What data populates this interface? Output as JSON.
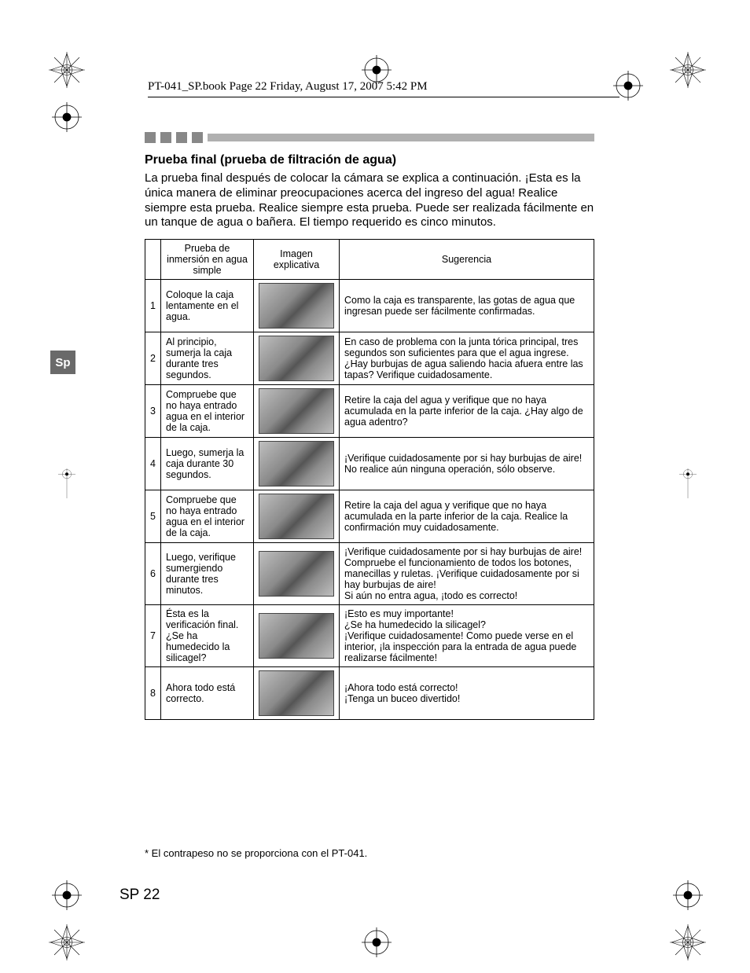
{
  "header": "PT-041_SP.book  Page 22  Friday, August 17, 2007  5:42 PM",
  "lang_tab": "Sp",
  "section_title": "Prueba final (prueba de filtración de agua)",
  "intro": "La prueba final después de colocar la cámara se explica a continuación. ¡Esta es la única manera de eliminar preocupaciones acerca del ingreso del agua! Realice siempre esta prueba. Realice siempre esta prueba. Puede ser realizada fácilmente en un tanque de agua o bañera. El tiempo requerido es cinco minutos.",
  "columns": {
    "c1": "Prueba de inmersión en agua simple",
    "c2": "Imagen explicativa",
    "c3": "Sugerencia"
  },
  "rows": [
    {
      "n": "1",
      "step": "Coloque la caja lentamente en el agua.",
      "sug": "Como la caja es transparente, las gotas de agua que ingresan puede ser fácilmente confirmadas."
    },
    {
      "n": "2",
      "step": "Al principio, sumerja la caja durante tres segundos.",
      "sug": "En caso de problema con la junta tórica principal, tres segundos son suficientes para que el agua ingrese. ¿Hay burbujas de agua saliendo hacia afuera entre las tapas? Verifique cuidadosamente."
    },
    {
      "n": "3",
      "step": "Compruebe que no haya entrado agua en el interior de la caja.",
      "sug": "Retire la caja del agua y verifique que no haya acumulada en la parte inferior de la caja. ¿Hay algo de agua adentro?"
    },
    {
      "n": "4",
      "step": "Luego, sumerja la caja durante 30 segundos.",
      "sug": "¡Verifique cuidadosamente por si hay burbujas de aire!\nNo realice aún ninguna operación, sólo observe."
    },
    {
      "n": "5",
      "step": "Compruebe que no haya entrado agua en el interior de la caja.",
      "sug": "Retire la caja del agua y verifique que no haya acumulada en la parte inferior de la caja. Realice la confirmación muy cuidadosamente."
    },
    {
      "n": "6",
      "step": "Luego, verifique sumergiendo durante tres minutos.",
      "sug": "¡Verifique cuidadosamente por si hay burbujas de aire!\nCompruebe el funcionamiento de todos los botones, manecillas y ruletas. ¡Verifique cuidadosamente por si hay burbujas de aire!\nSi aún no entra agua, ¡todo es correcto!"
    },
    {
      "n": "7",
      "step": "Ésta es la verificación final. ¿Se ha humedecido la silicagel?",
      "sug": "¡Esto es muy importante!\n¿Se ha humedecido la silicagel?\n¡Verifique cuidadosamente! Como puede verse en el interior, ¡la inspección para la entrada de agua puede realizarse fácilmente!"
    },
    {
      "n": "8",
      "step": "Ahora todo está correcto.",
      "sug": "¡Ahora todo está correcto!\n¡Tenga un buceo divertido!"
    }
  ],
  "footnote": "*    El contrapeso no se proporciona con el PT-041.",
  "page_num": "SP 22"
}
